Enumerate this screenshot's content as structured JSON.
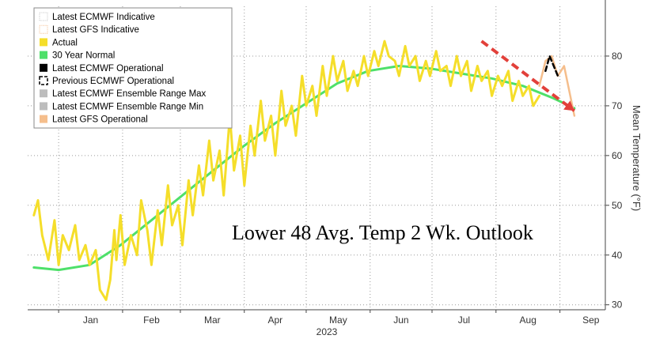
{
  "chart_data": {
    "type": "line",
    "title": "",
    "overlay_text": "Lower 48 Avg. Temp 2 Wk. Outlook",
    "ylabel": "Mean Temperature (°F)",
    "xlabel": "",
    "year_label": "2023",
    "x_ticks": [
      "Jan",
      "Feb",
      "Mar",
      "Apr",
      "May",
      "Jun",
      "Jul",
      "Aug",
      "Sep"
    ],
    "y_ticks": [
      30,
      40,
      50,
      60,
      70,
      80
    ],
    "ylim": [
      29,
      90
    ],
    "xlim": [
      -15,
      265
    ],
    "grid": true,
    "legend_position": "top-left",
    "legend": [
      {
        "name": "Latest ECMWF Indicative",
        "style": "dotted-box",
        "color": "#bbbbbb"
      },
      {
        "name": "Latest GFS Indicative",
        "style": "dotted-box",
        "color": "#f2b27a"
      },
      {
        "name": "Actual",
        "style": "fill",
        "color": "#f5de2a"
      },
      {
        "name": "30 Year Normal",
        "style": "fill",
        "color": "#4ee06a"
      },
      {
        "name": "Latest ECMWF Operational",
        "style": "fill",
        "color": "#000000"
      },
      {
        "name": "Previous ECMWF Operational",
        "style": "dashed-box",
        "color": "#000000"
      },
      {
        "name": "Latest ECMWF Ensemble Range Max",
        "style": "fill",
        "color": "#bdbdbd"
      },
      {
        "name": "Latest ECMWF Ensemble Range Min",
        "style": "fill",
        "color": "#bdbdbd"
      },
      {
        "name": "Latest GFS Operational",
        "style": "fill",
        "color": "#f5be8c"
      }
    ],
    "series": [
      {
        "name": "Actual",
        "color": "#f5de2a",
        "x": [
          -12,
          -10,
          -8,
          -5,
          -2,
          0,
          2,
          5,
          8,
          10,
          13,
          15,
          18,
          20,
          23,
          25,
          27,
          28,
          30,
          32,
          35,
          38,
          40,
          43,
          45,
          48,
          50,
          53,
          55,
          58,
          60,
          63,
          65,
          68,
          70,
          73,
          75,
          78,
          80,
          83,
          85,
          88,
          90,
          93,
          95,
          98,
          100,
          103,
          105,
          108,
          110,
          113,
          115,
          118,
          120,
          123,
          125,
          128,
          130,
          133,
          135,
          138,
          140,
          143,
          145,
          148,
          150,
          153,
          155,
          158,
          160,
          163,
          165,
          168,
          170,
          173,
          175,
          178,
          180,
          183,
          185,
          188,
          190,
          193,
          195,
          198,
          200,
          203,
          205,
          208,
          210,
          213,
          215,
          218,
          220,
          223,
          225,
          228,
          230,
          233
        ],
        "values": [
          48,
          51,
          44,
          39,
          47,
          38,
          44,
          41,
          46,
          39,
          42,
          38,
          41,
          33,
          31,
          35,
          45,
          39,
          48,
          38,
          44,
          40,
          51,
          45,
          38,
          49,
          42,
          54,
          46,
          50,
          42,
          55,
          48,
          58,
          52,
          63,
          55,
          61,
          52,
          68,
          57,
          64,
          54,
          66,
          60,
          71,
          63,
          68,
          60,
          73,
          66,
          70,
          64,
          76,
          70,
          74,
          68,
          78,
          72,
          80,
          75,
          79,
          73,
          77,
          74,
          80,
          76,
          81,
          78,
          83,
          80,
          79,
          76,
          82,
          78,
          80,
          75,
          79,
          76,
          81,
          77,
          78,
          74,
          80,
          76,
          79,
          73,
          78,
          75,
          77,
          72,
          76,
          74,
          77,
          71,
          75,
          72,
          74,
          70,
          72
        ]
      },
      {
        "name": "30 Year Normal",
        "color": "#4ee06a",
        "x": [
          -12,
          0,
          15,
          30,
          45,
          60,
          75,
          90,
          105,
          120,
          135,
          150,
          165,
          180,
          195,
          210,
          225,
          240,
          250
        ],
        "values": [
          37.5,
          37.0,
          38.0,
          42.0,
          47.0,
          52.0,
          57.0,
          62.0,
          66.5,
          70.5,
          74.5,
          77.0,
          78.0,
          77.5,
          76.5,
          75.5,
          74.0,
          71.5,
          69.5
        ]
      },
      {
        "name": "Latest GFS Operational",
        "color": "#f5be8c",
        "x": [
          233,
          236,
          239,
          242,
          245,
          248,
          250
        ],
        "values": [
          74,
          79,
          80,
          76,
          78,
          72,
          68
        ]
      },
      {
        "name": "Latest ECMWF Operational",
        "color": "#000000",
        "x": [
          236,
          238,
          240,
          242
        ],
        "values": [
          77,
          80,
          78,
          76
        ]
      }
    ],
    "trend_line": {
      "color": "#e2403a",
      "x": [
        205,
        250
      ],
      "values": [
        83,
        69
      ]
    }
  }
}
